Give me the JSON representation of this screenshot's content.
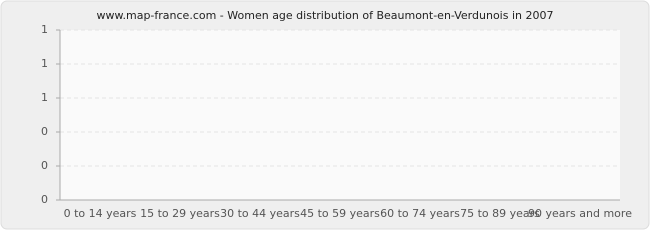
{
  "chart_data": {
    "type": "bar",
    "title": "www.map-france.com - Women age distribution of Beaumont-en-Verdunois in 2007",
    "categories": [
      "0 to 14 years",
      "15 to 29 years",
      "30 to 44 years",
      "45 to 59 years",
      "60 to 74 years",
      "75 to 89 years",
      "90 years and more"
    ],
    "values": [
      0,
      0,
      0,
      0,
      0,
      0,
      0
    ],
    "color": "#4e6f9e",
    "ylim": [
      0,
      1
    ],
    "yticks": [
      0,
      {
        "value": 0.2,
        "label": "0"
      },
      {
        "value": 0.4,
        "label": "0"
      },
      {
        "value": 0.6,
        "label": "1"
      },
      {
        "value": 0.8,
        "label": "1"
      },
      1
    ],
    "grid": true
  }
}
